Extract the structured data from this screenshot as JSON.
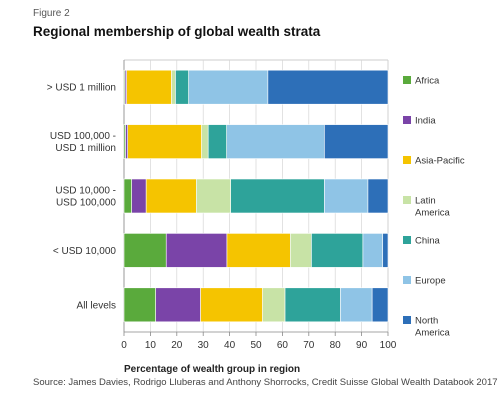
{
  "figure_label": "Figure 2",
  "source": "Source: James Davies, Rodrigo Lluberas and Anthony Shorrocks, Credit Suisse Global Wealth Databook 2017",
  "chart_data": {
    "type": "bar",
    "orientation": "horizontal",
    "stacked": true,
    "title": "Regional membership of global wealth strata",
    "xlabel": "Percentage of wealth group in region",
    "ylabel": "",
    "xlim": [
      0,
      100
    ],
    "xticks": [
      0,
      10,
      20,
      30,
      40,
      50,
      60,
      70,
      80,
      90,
      100
    ],
    "categories": [
      [
        "> USD 1 million"
      ],
      [
        "USD 100,000 -",
        "USD 1 million"
      ],
      [
        "USD 10,000 -",
        "USD 100,000"
      ],
      [
        "< USD 10,000"
      ],
      [
        "All levels"
      ]
    ],
    "series": [
      {
        "name": [
          "Africa"
        ],
        "color": "#5aaa3c",
        "values": [
          0.4,
          0.6,
          2.9,
          16.0,
          12.0
        ]
      },
      {
        "name": [
          "India"
        ],
        "color": "#7a44a8",
        "values": [
          0.6,
          0.8,
          5.5,
          23.0,
          17.0
        ]
      },
      {
        "name": [
          "Asia-Pacific"
        ],
        "color": "#f5c400",
        "values": [
          17.0,
          28.0,
          19.0,
          24.0,
          23.5
        ]
      },
      {
        "name": [
          "Latin",
          "America"
        ],
        "color": "#c8e3a6",
        "values": [
          1.5,
          2.5,
          13.0,
          8.0,
          8.5
        ]
      },
      {
        "name": [
          "China"
        ],
        "color": "#2ea39a",
        "values": [
          5.0,
          7.0,
          35.5,
          19.5,
          21.0
        ]
      },
      {
        "name": [
          "Europe"
        ],
        "color": "#8fc4e6",
        "values": [
          30.0,
          37.0,
          16.5,
          7.5,
          12.0
        ]
      },
      {
        "name": [
          "North",
          "America"
        ],
        "color": "#2d6fb8",
        "values": [
          45.5,
          24.1,
          7.6,
          2.0,
          6.0
        ]
      }
    ],
    "legend_position": "right",
    "grid": "vertical"
  }
}
